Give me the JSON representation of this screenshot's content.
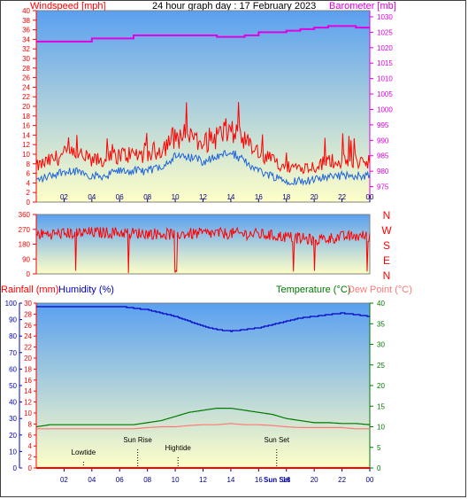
{
  "header": {
    "wind_label": "Windspeed [mph]",
    "title": "24 hour graph day : 17 February 2023",
    "baro_label": "Barometer [mb]"
  },
  "lower_header": {
    "rain_label": "Rainfall (mm)",
    "humidity_label": "Humidity (%)",
    "temp_label": "Temperature (°C)",
    "dew_label": "Dew Point (°C)"
  },
  "compass_labels": [
    "N",
    "W",
    "S",
    "E",
    "N"
  ],
  "colors": {
    "wind": "#ff0000",
    "gust": "#ff0000",
    "wind_avg": "#1e64dc",
    "baro": "#e000e0",
    "direction": "#ff0000",
    "humidity": "#0000c8",
    "temperature": "#007800",
    "dew": "#ff7878",
    "rain": "#ff0000",
    "sky_top": "#5aa0f0",
    "sky_bottom": "#ffffc8",
    "left_axis": "#ff0000",
    "right_axis": "#e000e0",
    "hum_axis": "#0000c8",
    "temp_axis": "#007800"
  },
  "chart_data": [
    {
      "type": "line",
      "title": "24 hour graph day : 17 February 2023",
      "ylabel": "Windspeed [mph]",
      "y2label": "Barometer [mb]",
      "x_ticks": [
        "02",
        "04",
        "06",
        "08",
        "10",
        "12",
        "14",
        "16",
        "18",
        "20",
        "22",
        "00"
      ],
      "ylim": [
        0,
        40
      ],
      "y_ticks": [
        0,
        2,
        4,
        6,
        8,
        10,
        12,
        14,
        16,
        18,
        20,
        22,
        24,
        26,
        28,
        30,
        32,
        34,
        36,
        38,
        40
      ],
      "y2lim": [
        970,
        1032
      ],
      "y2_ticks": [
        975,
        980,
        985,
        990,
        995,
        1000,
        1005,
        1010,
        1015,
        1020,
        1025,
        1030
      ],
      "hours": [
        0,
        1,
        2,
        3,
        4,
        5,
        6,
        7,
        8,
        9,
        10,
        11,
        12,
        13,
        14,
        15,
        16,
        17,
        18,
        19,
        20,
        21,
        22,
        23,
        24
      ],
      "series": [
        {
          "name": "Windspeed [mph]",
          "values": [
            5,
            6,
            7,
            7,
            6,
            6,
            7,
            7,
            7,
            8,
            10,
            10,
            9,
            10,
            11,
            9,
            7,
            6,
            5,
            5,
            5,
            6,
            6,
            6,
            6
          ]
        },
        {
          "name": "Barometer [mb]",
          "values": [
            1022,
            1022,
            1022,
            1022,
            1023,
            1023,
            1023,
            1024,
            1024,
            1024,
            1024,
            1024,
            1024,
            1023.5,
            1023.5,
            1024,
            1025,
            1025,
            1025.5,
            1026,
            1026.5,
            1027,
            1027,
            1026.5,
            1026.5
          ]
        }
      ]
    },
    {
      "type": "line",
      "ylim": [
        0,
        360
      ],
      "y_ticks": [
        0,
        90,
        180,
        270,
        360
      ],
      "hours": [
        0,
        2,
        4,
        6,
        8,
        10,
        12,
        14,
        16,
        18,
        20,
        22,
        24
      ],
      "values": [
        240,
        245,
        250,
        250,
        245,
        240,
        245,
        245,
        240,
        225,
        205,
        225,
        230
      ]
    },
    {
      "type": "line",
      "x_ticks": [
        "02",
        "04",
        "06",
        "08",
        "10",
        "12",
        "14",
        "16",
        "18",
        "20",
        "22",
        "00"
      ],
      "rain_ylim": [
        0,
        30
      ],
      "rain_ticks": [
        0,
        2,
        4,
        6,
        8,
        10,
        12,
        14,
        16,
        18,
        20,
        22,
        24,
        26,
        28,
        30
      ],
      "humidity_ylim": [
        0,
        100
      ],
      "humidity_ticks": [
        0,
        10,
        20,
        30,
        40,
        50,
        60,
        70,
        80,
        90,
        100
      ],
      "temp_ylim": [
        0,
        40
      ],
      "temp_ticks": [
        0,
        5,
        10,
        15,
        20,
        25,
        30,
        35,
        40
      ],
      "hours": [
        0,
        1,
        2,
        3,
        4,
        5,
        6,
        7,
        8,
        9,
        10,
        11,
        12,
        13,
        14,
        15,
        16,
        17,
        18,
        19,
        20,
        21,
        22,
        23,
        24
      ],
      "series": [
        {
          "name": "Humidity (%)",
          "values": [
            98,
            98,
            98,
            98,
            98,
            98,
            98,
            97,
            96,
            94,
            92,
            89,
            86,
            84,
            83,
            84,
            85,
            87,
            89,
            91,
            92,
            93,
            94,
            93,
            92
          ]
        },
        {
          "name": "Temperature (°C)",
          "values": [
            10,
            10.5,
            10.5,
            10.5,
            10.5,
            10.5,
            10.5,
            10.5,
            11,
            11.5,
            12.5,
            13.5,
            14,
            14.5,
            14.5,
            14,
            13.5,
            13,
            12,
            11.5,
            11,
            11,
            10.8,
            10.8,
            10.5
          ]
        },
        {
          "name": "Dew Point (°C)",
          "values": [
            9.5,
            9.5,
            9.5,
            9.5,
            9.5,
            9.5,
            9.5,
            9.5,
            9.8,
            10,
            10,
            10.3,
            10.5,
            10.5,
            10.8,
            10.5,
            10.5,
            10.3,
            10,
            9.8,
            9.8,
            9.8,
            9.8,
            9.5,
            9.5
          ]
        },
        {
          "name": "Rainfall (mm)",
          "values": [
            0,
            0,
            0,
            0,
            0,
            0,
            0,
            0,
            0,
            0,
            0,
            0,
            0,
            0,
            0,
            0,
            0,
            0,
            0,
            0,
            0,
            0,
            0,
            0,
            0
          ]
        }
      ],
      "annotations": [
        {
          "text": "Lowtide",
          "hour": 3.4,
          "level": "low"
        },
        {
          "text": "Sun Rise",
          "hour": 7.3,
          "level": "high"
        },
        {
          "text": "Hightide",
          "hour": 10.2,
          "level": "mid"
        },
        {
          "text": "Sun Set",
          "hour": 17.3,
          "level": "high"
        }
      ],
      "marker_text": "Sun Set"
    }
  ]
}
